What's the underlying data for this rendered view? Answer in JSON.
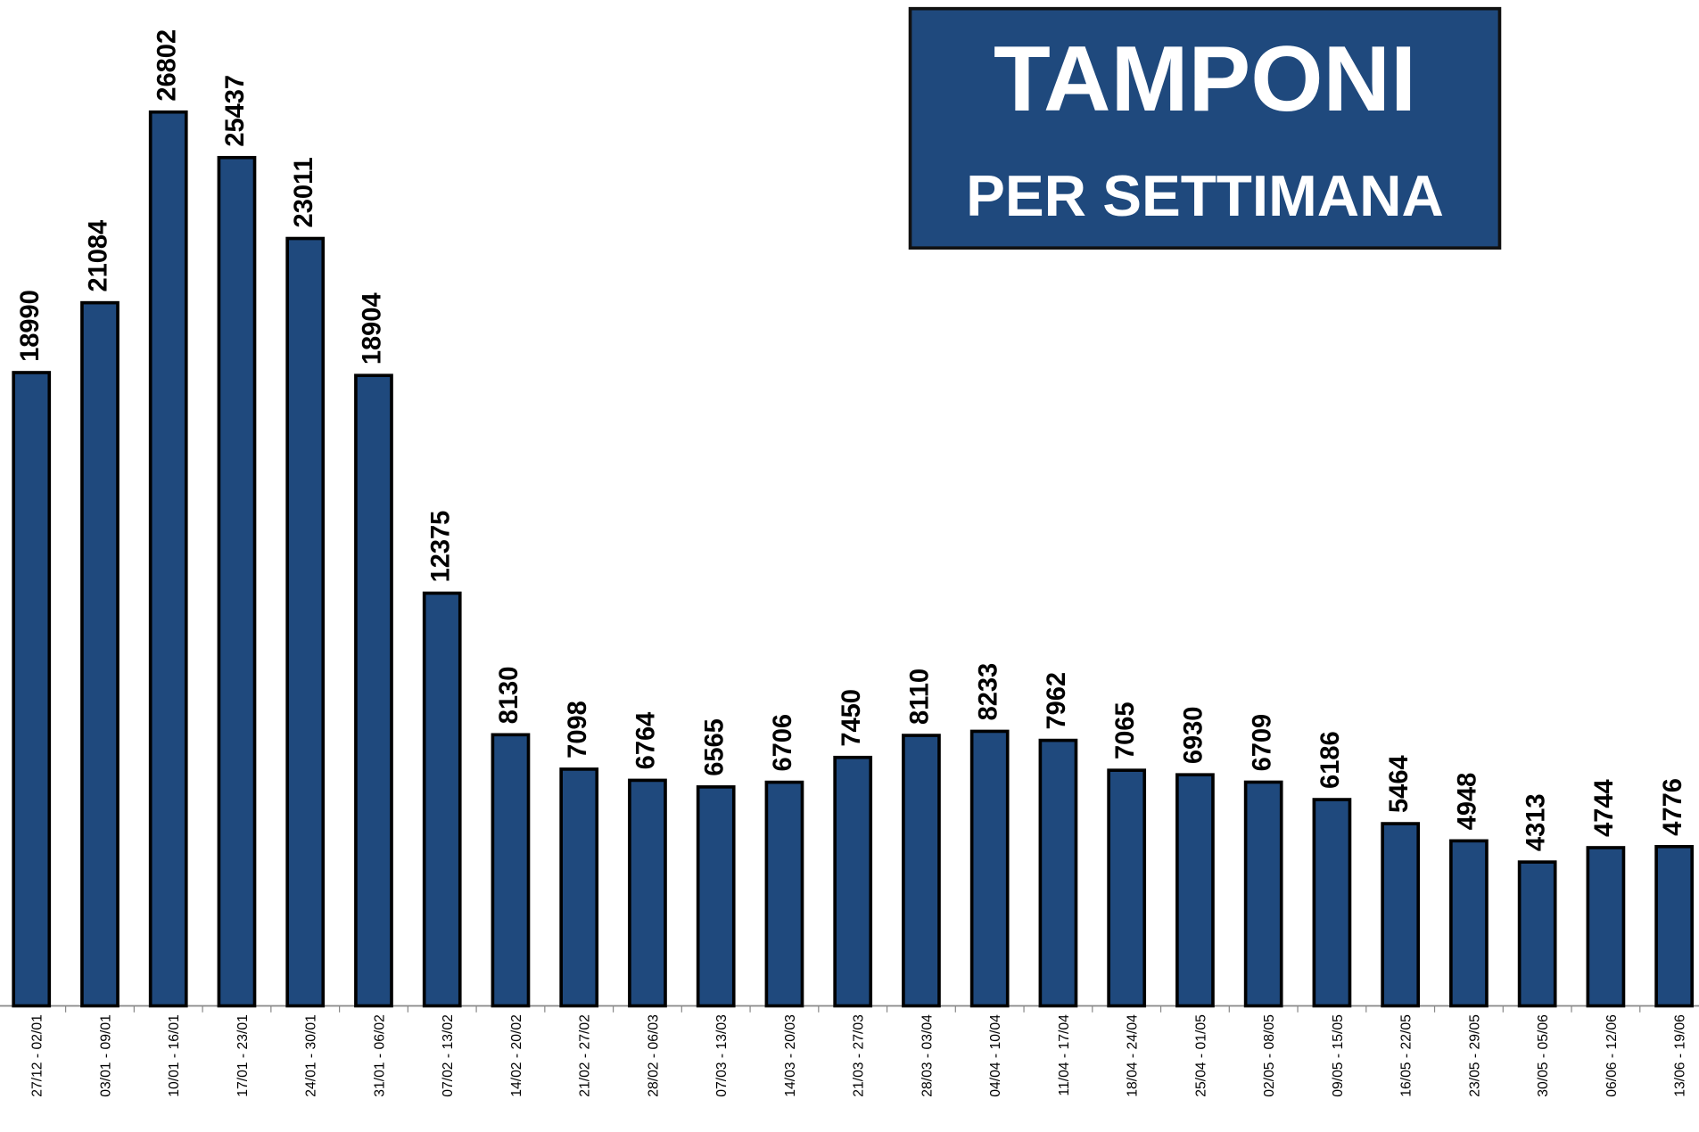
{
  "chart_data": {
    "type": "bar",
    "title": "TAMPONI",
    "subtitle": "PER SETTIMANA",
    "categories": [
      "27/12 - 02/01",
      "03/01 - 09/01",
      "10/01 - 16/01",
      "17/01 - 23/01",
      "24/01 - 30/01",
      "31/01 - 06/02",
      "07/02 - 13/02",
      "14/02 - 20/02",
      "21/02 - 27/02",
      "28/02 - 06/03",
      "07/03 - 13/03",
      "14/03 - 20/03",
      "21/03 - 27/03",
      "28/03 - 03/04",
      "04/04 - 10/04",
      "11/04 - 17/04",
      "18/04 - 24/04",
      "25/04 - 01/05",
      "02/05 - 08/05",
      "09/05 - 15/05",
      "16/05 - 22/05",
      "23/05 - 29/05",
      "30/05 - 05/06",
      "06/06 - 12/06",
      "13/06 - 19/06"
    ],
    "values": [
      18990,
      21084,
      26802,
      25437,
      23011,
      18904,
      12375,
      8130,
      7098,
      6764,
      6565,
      6706,
      7450,
      8110,
      8233,
      7962,
      7065,
      6930,
      6709,
      6186,
      5464,
      4948,
      4313,
      4744,
      4776
    ],
    "color": "#1f497d",
    "ylim": [
      0,
      30000
    ]
  }
}
